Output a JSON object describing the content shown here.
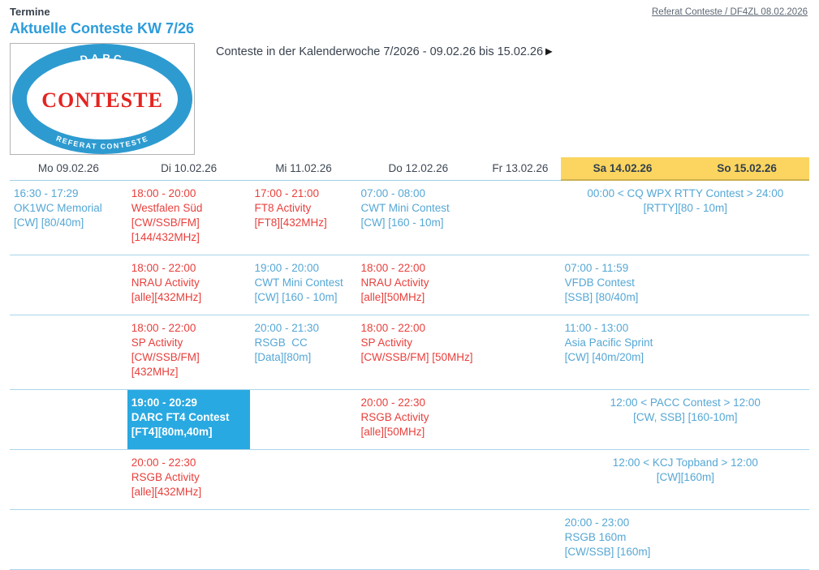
{
  "page": {
    "eyebrow": "Termine",
    "top_link": "Referat Conteste / DF4ZL 08.02.2026",
    "title": "Aktuelle Conteste KW 7/26",
    "subtitle": "Conteste in der Kalenderwoche 7/2026 - 09.02.26 bis 15.02.26",
    "subtitle_arrow": "►"
  },
  "logo": {
    "top_text": "DARC",
    "center_text": "CONTESTE",
    "bottom_text": "REFERAT CONTESTE"
  },
  "colors": {
    "title_blue": "#2D9CDB",
    "entry_blue": "#55A7D5",
    "entry_red": "#E8403C",
    "highlight_cell_bg": "#29A9E1",
    "weekend_header_bg": "#FBD55F",
    "row_separator": "#A9D4EC",
    "logo_ring_blue": "#2E9BD0",
    "logo_text_red": "#E42320",
    "heading_dark": "#3B4450"
  },
  "calendar": {
    "columns": [
      {
        "label": "Mo 09.02.26",
        "weekend": false
      },
      {
        "label": "Di 10.02.26",
        "weekend": false
      },
      {
        "label": "Mi 11.02.26",
        "weekend": false
      },
      {
        "label": "Do 12.02.26",
        "weekend": false
      },
      {
        "label": "Fr 13.02.26",
        "weekend": false
      },
      {
        "label": "Sa 14.02.26",
        "weekend": true
      },
      {
        "label": "So 15.02.26",
        "weekend": true
      }
    ],
    "rows": [
      {
        "cells": [
          {
            "col": 0,
            "span": 1,
            "variant": "blue",
            "align": "left",
            "lines": [
              "16:30 - 17:29",
              "OK1WC Memorial",
              "[CW] [80/40m]"
            ]
          },
          {
            "col": 1,
            "span": 1,
            "variant": "red",
            "align": "left",
            "lines": [
              "18:00 - 20:00",
              "Westfalen Süd",
              "[CW/SSB/FM]",
              "[144/432MHz]"
            ]
          },
          {
            "col": 2,
            "span": 1,
            "variant": "red",
            "align": "left",
            "lines": [
              "17:00 - 21:00",
              "FT8 Activity",
              "[FT8][432MHz]"
            ]
          },
          {
            "col": 3,
            "span": 1,
            "variant": "blue",
            "align": "left",
            "lines": [
              "07:00 - 08:00",
              "CWT Mini Contest",
              "[CW] [160 - 10m]"
            ]
          },
          {
            "col": 5,
            "span": 2,
            "variant": "blue",
            "align": "center",
            "lines": [
              "00:00 < CQ WPX RTTY Contest > 24:00",
              "[RTTY][80 - 10m]"
            ]
          }
        ]
      },
      {
        "cells": [
          {
            "col": 1,
            "span": 1,
            "variant": "red",
            "align": "left",
            "lines": [
              "18:00 - 22:00",
              "NRAU Activity",
              "[alle][432MHz]"
            ]
          },
          {
            "col": 2,
            "span": 1,
            "variant": "blue",
            "align": "left",
            "lines": [
              "19:00 - 20:00",
              "CWT Mini Contest",
              "[CW] [160 - 10m]"
            ]
          },
          {
            "col": 3,
            "span": 1,
            "variant": "red",
            "align": "left",
            "lines": [
              "18:00 - 22:00",
              "NRAU Activity",
              "[alle][50MHz]"
            ]
          },
          {
            "col": 5,
            "span": 1,
            "variant": "blue",
            "align": "left",
            "lines": [
              "07:00 - 11:59",
              "VFDB Contest",
              "[SSB] [80/40m]"
            ]
          }
        ]
      },
      {
        "cells": [
          {
            "col": 1,
            "span": 1,
            "variant": "red",
            "align": "left",
            "lines": [
              "18:00 - 22:00",
              "SP Activity",
              "[CW/SSB/FM]",
              "[432MHz]"
            ]
          },
          {
            "col": 2,
            "span": 1,
            "variant": "blue",
            "align": "left",
            "lines": [
              "20:00 - 21:30",
              "RSGB  CC",
              "[Data][80m]"
            ]
          },
          {
            "col": 3,
            "span": 1,
            "variant": "red",
            "align": "left",
            "lines": [
              "18:00 - 22:00",
              "SP Activity",
              "[CW/SSB/FM] [50MHz]"
            ]
          },
          {
            "col": 5,
            "span": 1,
            "variant": "blue",
            "align": "left",
            "lines": [
              "11:00 - 13:00",
              "Asia Pacific Sprint",
              "[CW] [40m/20m]"
            ]
          }
        ]
      },
      {
        "cells": [
          {
            "col": 1,
            "span": 1,
            "variant": "highlight",
            "align": "left",
            "lines": [
              "19:00 - 20:29",
              "DARC FT4 Contest",
              "[FT4][80m,40m]"
            ]
          },
          {
            "col": 3,
            "span": 1,
            "variant": "red",
            "align": "left",
            "lines": [
              "20:00 - 22:30",
              "RSGB Activity",
              "[alle][50MHz]"
            ]
          },
          {
            "col": 5,
            "span": 2,
            "variant": "blue",
            "align": "center",
            "lines": [
              "12:00 < PACC Contest > 12:00",
              "[CW, SSB] [160-10m]"
            ]
          }
        ]
      },
      {
        "cells": [
          {
            "col": 1,
            "span": 1,
            "variant": "red",
            "align": "left",
            "lines": [
              "20:00 - 22:30",
              "RSGB Activity",
              "[alle][432MHz]"
            ]
          },
          {
            "col": 5,
            "span": 2,
            "variant": "blue",
            "align": "center",
            "lines": [
              "12:00 < KCJ Topband > 12:00",
              "[CW][160m]"
            ]
          }
        ]
      },
      {
        "cells": [
          {
            "col": 5,
            "span": 1,
            "variant": "blue",
            "align": "left",
            "lines": [
              "20:00 - 23:00",
              "RSGB 160m",
              "[CW/SSB] [160m]"
            ]
          }
        ]
      }
    ]
  }
}
